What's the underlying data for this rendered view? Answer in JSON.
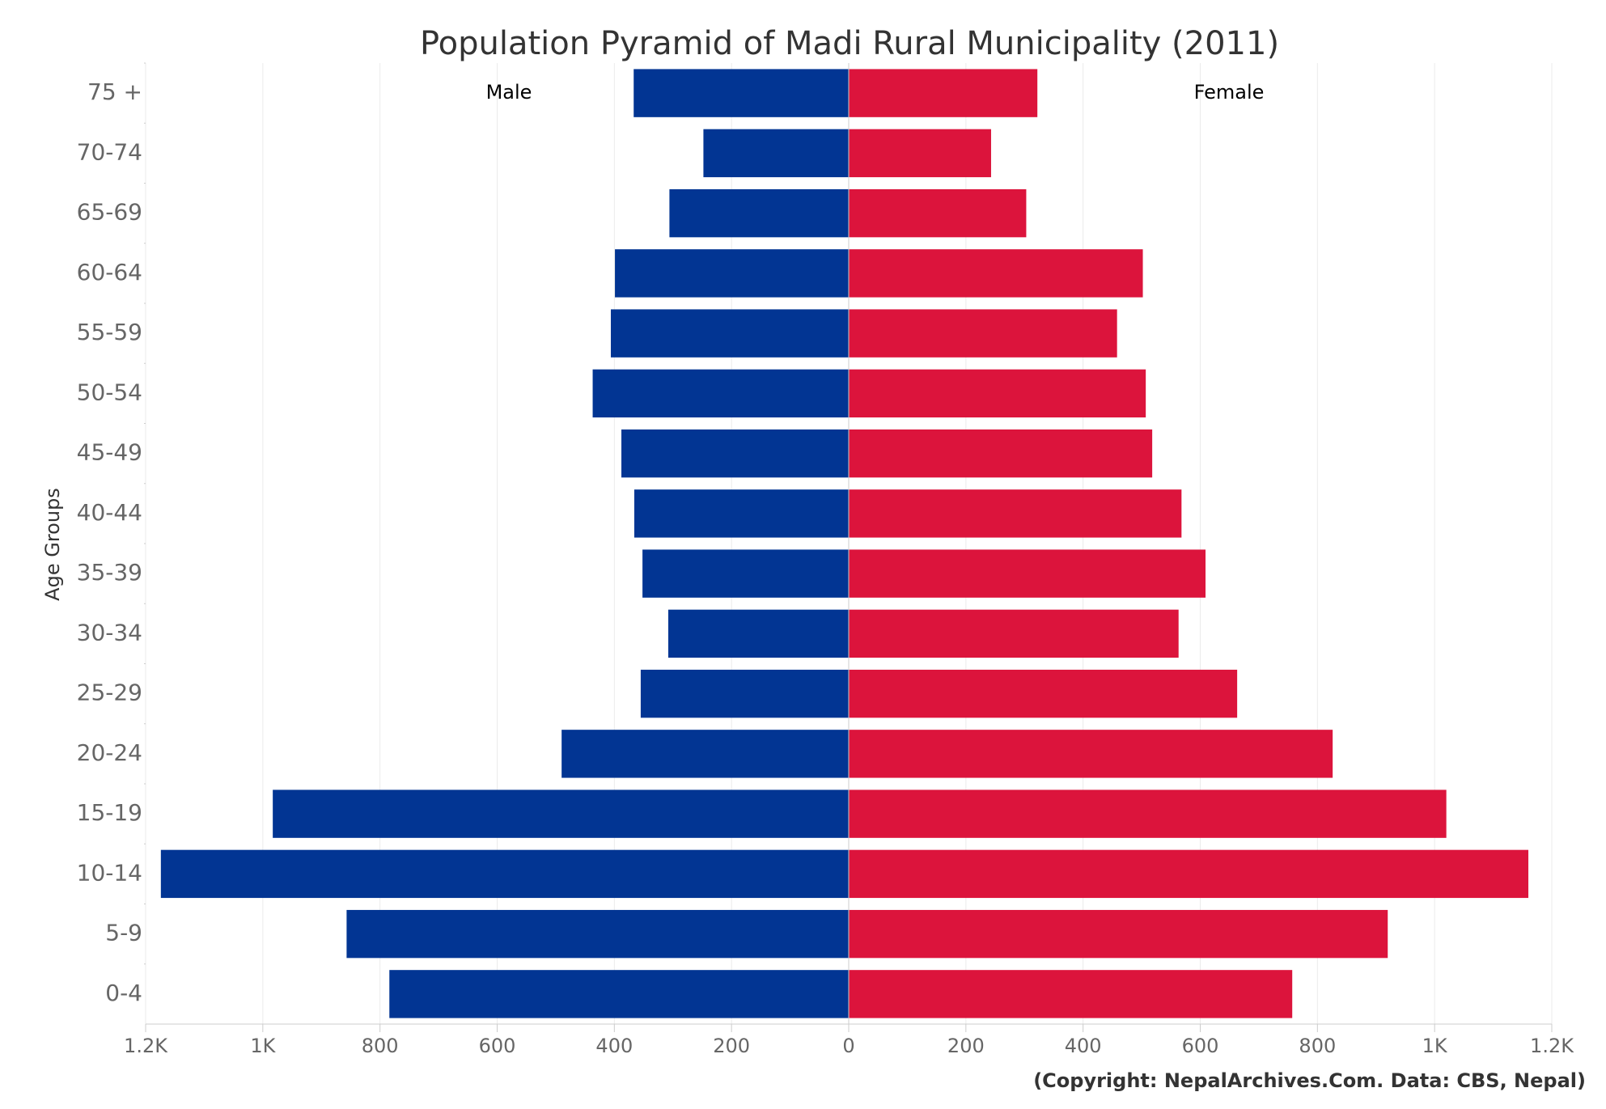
{
  "chart_data": {
    "type": "pyramid",
    "title": "Population Pyramid of Madi Rural Municipality (2011)",
    "y_label": "Age Groups",
    "credit": "(Copyright: NepalArchives.Com. Data: CBS, Nepal)",
    "categories": [
      "75 +",
      "70-74",
      "65-69",
      "60-64",
      "55-59",
      "50-54",
      "45-49",
      "40-44",
      "35-39",
      "30-34",
      "25-29",
      "20-24",
      "15-19",
      "10-14",
      "5-9",
      "0-4"
    ],
    "series": [
      {
        "name": "Male",
        "color": "#023593",
        "side": "left",
        "values": [
          367,
          248,
          306,
          399,
          406,
          437,
          388,
          366,
          352,
          308,
          355,
          490,
          983,
          1174,
          857,
          784
        ]
      },
      {
        "name": "Female",
        "color": "#dc143c",
        "side": "right",
        "values": [
          322,
          243,
          303,
          502,
          458,
          507,
          518,
          568,
          609,
          563,
          663,
          826,
          1020,
          1160,
          920,
          757
        ]
      }
    ],
    "xlim": [
      -1200,
      1200
    ],
    "xticks": [
      {
        "value": -1200,
        "label": "1.2K"
      },
      {
        "value": -1000,
        "label": "1K"
      },
      {
        "value": -800,
        "label": "800"
      },
      {
        "value": -600,
        "label": "600"
      },
      {
        "value": -400,
        "label": "400"
      },
      {
        "value": -200,
        "label": "200"
      },
      0,
      200,
      400,
      600,
      800,
      {
        "value": 1000,
        "label": "1K"
      },
      {
        "value": 1200,
        "label": "1.2K"
      }
    ],
    "grid": true
  }
}
